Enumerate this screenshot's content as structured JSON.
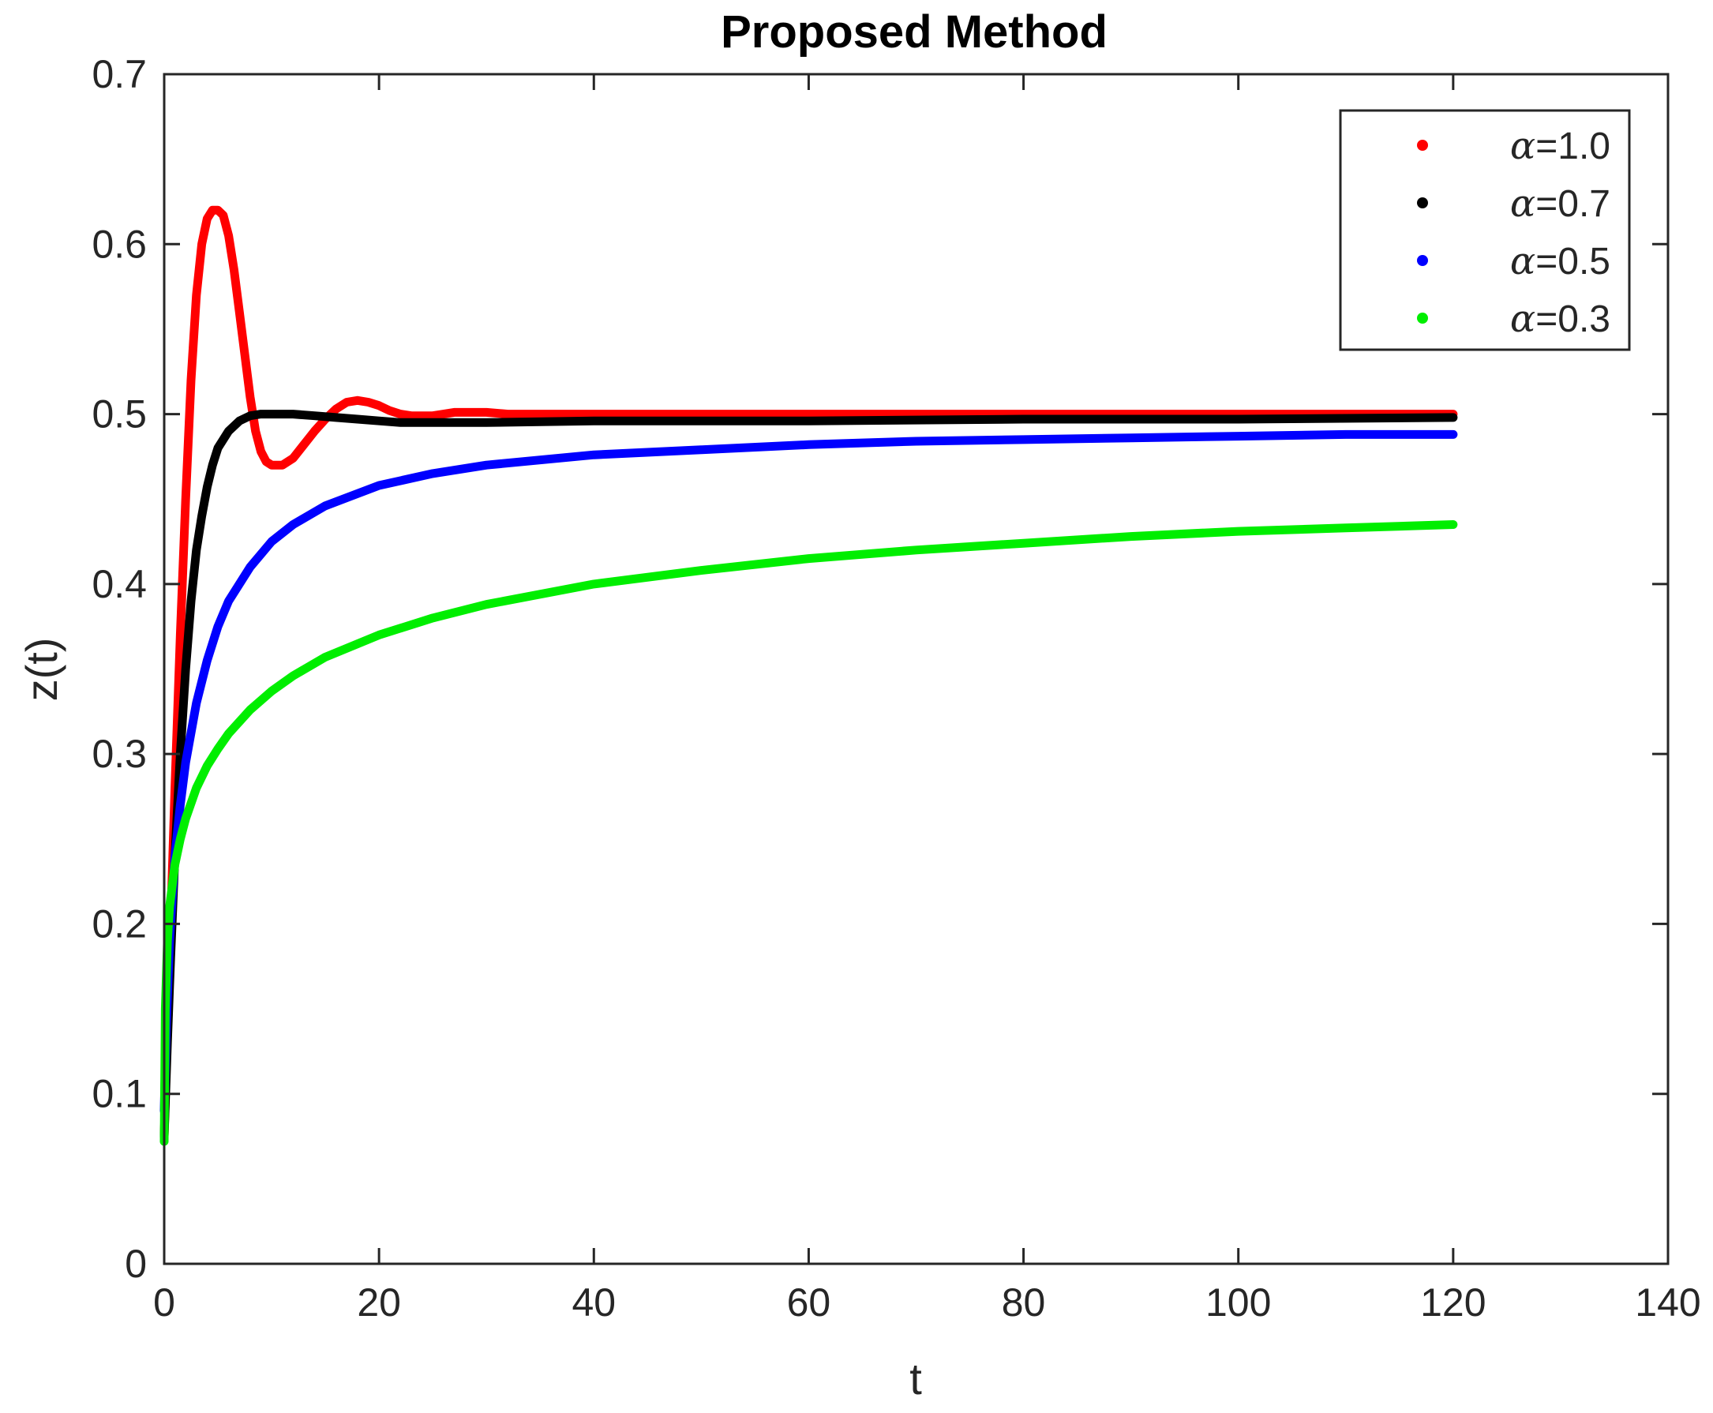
{
  "chart_data": {
    "type": "line",
    "title": "Proposed Method",
    "xlabel": "t",
    "ylabel": "z(t)",
    "xlim": [
      0,
      140
    ],
    "ylim": [
      0,
      0.7
    ],
    "xticks": [
      0,
      20,
      40,
      60,
      80,
      100,
      120,
      140
    ],
    "xtick_labels": [
      "0",
      "20",
      "40",
      "60",
      "80",
      "100",
      "120",
      "140"
    ],
    "yticks": [
      0,
      0.1,
      0.2,
      0.3,
      0.4,
      0.5,
      0.6,
      0.7
    ],
    "ytick_labels": [
      "0",
      "0.1",
      "0.2",
      "0.3",
      "0.4",
      "0.5",
      "0.6",
      "0.7"
    ],
    "grid": false,
    "legend_position": "top-right",
    "series": [
      {
        "name_symbol": "α",
        "name_value": "=1.0",
        "color": "#ff0000",
        "x": [
          0,
          0.5,
          1,
          1.5,
          2,
          2.5,
          3,
          3.5,
          4,
          4.5,
          5,
          5.5,
          6,
          6.5,
          7,
          7.5,
          8,
          8.5,
          9,
          9.5,
          10,
          11,
          12,
          13,
          14,
          15,
          16,
          17,
          18,
          19,
          20,
          21,
          22,
          23,
          24,
          25,
          26,
          27,
          28,
          29,
          30,
          32,
          35,
          40,
          50,
          60,
          80,
          100,
          120
        ],
        "y": [
          0.075,
          0.18,
          0.28,
          0.37,
          0.45,
          0.52,
          0.57,
          0.6,
          0.615,
          0.62,
          0.62,
          0.617,
          0.605,
          0.585,
          0.56,
          0.535,
          0.51,
          0.49,
          0.478,
          0.472,
          0.47,
          0.47,
          0.474,
          0.482,
          0.49,
          0.497,
          0.503,
          0.507,
          0.508,
          0.507,
          0.505,
          0.502,
          0.5,
          0.499,
          0.499,
          0.499,
          0.5,
          0.501,
          0.501,
          0.501,
          0.501,
          0.5,
          0.5,
          0.5,
          0.5,
          0.5,
          0.5,
          0.5,
          0.5
        ]
      },
      {
        "name_symbol": "α",
        "name_value": "=0.7",
        "color": "#000000",
        "x": [
          0,
          0.3,
          0.6,
          1,
          1.5,
          2,
          2.5,
          3,
          3.5,
          4,
          4.5,
          5,
          6,
          7,
          8,
          9,
          10,
          11,
          12,
          14,
          16,
          18,
          20,
          22,
          25,
          30,
          40,
          50,
          60,
          80,
          100,
          120
        ],
        "y": [
          0.075,
          0.13,
          0.18,
          0.24,
          0.3,
          0.35,
          0.39,
          0.42,
          0.44,
          0.457,
          0.47,
          0.48,
          0.49,
          0.496,
          0.499,
          0.5,
          0.5,
          0.5,
          0.5,
          0.499,
          0.498,
          0.497,
          0.496,
          0.495,
          0.495,
          0.495,
          0.496,
          0.496,
          0.496,
          0.497,
          0.497,
          0.498
        ]
      },
      {
        "name_symbol": "α",
        "name_value": "=0.5",
        "color": "#0000ff",
        "x": [
          0,
          0.2,
          0.5,
          1,
          1.5,
          2,
          3,
          4,
          5,
          6,
          8,
          10,
          12,
          15,
          20,
          25,
          30,
          40,
          50,
          60,
          70,
          80,
          90,
          100,
          110,
          120
        ],
        "y": [
          0.09,
          0.14,
          0.19,
          0.24,
          0.27,
          0.295,
          0.33,
          0.355,
          0.375,
          0.39,
          0.41,
          0.425,
          0.435,
          0.446,
          0.458,
          0.465,
          0.47,
          0.476,
          0.479,
          0.482,
          0.484,
          0.485,
          0.486,
          0.487,
          0.488,
          0.488
        ]
      },
      {
        "name_symbol": "α",
        "name_value": "=0.3",
        "color": "#00ee00",
        "x": [
          0,
          0.1,
          0.3,
          0.5,
          1,
          1.5,
          2,
          3,
          4,
          5,
          6,
          8,
          10,
          12,
          15,
          20,
          25,
          30,
          40,
          50,
          60,
          70,
          80,
          90,
          100,
          110,
          120
        ],
        "y": [
          0.072,
          0.15,
          0.19,
          0.21,
          0.235,
          0.25,
          0.262,
          0.28,
          0.293,
          0.303,
          0.312,
          0.326,
          0.337,
          0.346,
          0.357,
          0.37,
          0.38,
          0.388,
          0.4,
          0.408,
          0.415,
          0.42,
          0.424,
          0.428,
          0.431,
          0.433,
          0.435
        ]
      }
    ]
  }
}
